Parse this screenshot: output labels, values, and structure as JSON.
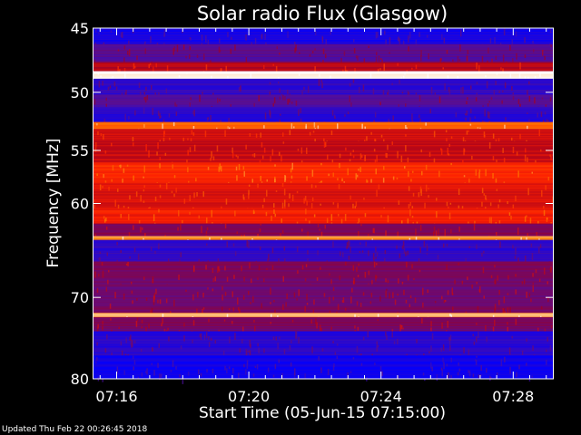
{
  "chart_data": {
    "type": "heatmap",
    "title": "Solar radio Flux (Glasgow)",
    "xlabel": "Start Time (05-Jun-15 07:15:00)",
    "ylabel": "Frequency [MHz]",
    "x_start_minutes": 0,
    "x_end_minutes": 14.5,
    "xlim_minutes": [
      0.3,
      14.2
    ],
    "x_ticks": [
      {
        "label": "07:16",
        "minutes": 1
      },
      {
        "label": "07:20",
        "minutes": 5
      },
      {
        "label": "07:24",
        "minutes": 9
      },
      {
        "label": "07:28",
        "minutes": 13
      }
    ],
    "ylim": [
      45,
      80
    ],
    "y_ticks": [
      45,
      50,
      55,
      60,
      70,
      80
    ],
    "colormap": [
      "#0000ff",
      "#5010a0",
      "#a00020",
      "#ff2000",
      "#ff8000",
      "#ffffff"
    ],
    "bands": [
      {
        "f0": 45.0,
        "f1": 46.2,
        "level": 0.05
      },
      {
        "f0": 46.2,
        "f1": 47.6,
        "level": 0.22
      },
      {
        "f0": 47.6,
        "f1": 48.3,
        "level": 0.45
      },
      {
        "f0": 48.3,
        "f1": 48.9,
        "level": 1.0
      },
      {
        "f0": 48.9,
        "f1": 50.2,
        "level": 0.12
      },
      {
        "f0": 50.2,
        "f1": 51.2,
        "level": 0.2
      },
      {
        "f0": 51.2,
        "f1": 52.5,
        "level": 0.1
      },
      {
        "f0": 52.5,
        "f1": 53.1,
        "level": 0.75
      },
      {
        "f0": 53.1,
        "f1": 54.2,
        "level": 0.5
      },
      {
        "f0": 54.2,
        "f1": 56.1,
        "level": 0.48
      },
      {
        "f0": 56.1,
        "f1": 58.0,
        "level": 0.62
      },
      {
        "f0": 58.0,
        "f1": 60.5,
        "level": 0.52
      },
      {
        "f0": 60.5,
        "f1": 62.0,
        "level": 0.58
      },
      {
        "f0": 62.0,
        "f1": 63.3,
        "level": 0.32
      },
      {
        "f0": 63.3,
        "f1": 63.7,
        "level": 0.82
      },
      {
        "f0": 63.7,
        "f1": 66.0,
        "level": 0.12
      },
      {
        "f0": 66.0,
        "f1": 68.5,
        "level": 0.3
      },
      {
        "f0": 68.5,
        "f1": 71.8,
        "level": 0.28
      },
      {
        "f0": 71.8,
        "f1": 72.3,
        "level": 0.88
      },
      {
        "f0": 72.3,
        "f1": 74.0,
        "level": 0.3
      },
      {
        "f0": 74.0,
        "f1": 77.0,
        "level": 0.1
      },
      {
        "f0": 77.0,
        "f1": 80.0,
        "level": 0.03
      }
    ]
  },
  "footer": {
    "updated_text": "Updated Thu Feb 22 00:26:45 2018"
  }
}
